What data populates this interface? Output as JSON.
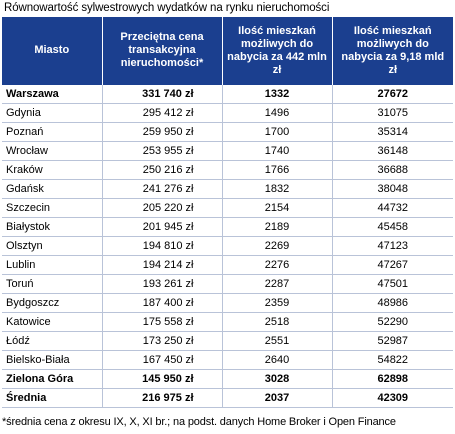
{
  "title": "Równowartość sylwestrowych wydatków na rynku nieruchomości",
  "headers": {
    "city": "Miasto",
    "price": "Przeciętna cena transakcyjna nieruchomości*",
    "count_442": "Ilość mieszkań możliwych do nabycia za 442 mln zł",
    "count_918": "Ilość mieszkań możliwych do nabycia za 9,18 mld zł"
  },
  "rows": [
    {
      "city": "Warszawa",
      "price": "331 740 zł",
      "count_442": "1332",
      "count_918": "27672",
      "bold": true
    },
    {
      "city": "Gdynia",
      "price": "295 412 zł",
      "count_442": "1496",
      "count_918": "31075",
      "bold": false
    },
    {
      "city": "Poznań",
      "price": "259 950 zł",
      "count_442": "1700",
      "count_918": "35314",
      "bold": false
    },
    {
      "city": "Wrocław",
      "price": "253 955 zł",
      "count_442": "1740",
      "count_918": "36148",
      "bold": false
    },
    {
      "city": "Kraków",
      "price": "250 216 zł",
      "count_442": "1766",
      "count_918": "36688",
      "bold": false
    },
    {
      "city": "Gdańsk",
      "price": "241 276 zł",
      "count_442": "1832",
      "count_918": "38048",
      "bold": false
    },
    {
      "city": "Szczecin",
      "price": "205 220 zł",
      "count_442": "2154",
      "count_918": "44732",
      "bold": false
    },
    {
      "city": "Białystok",
      "price": "201 945 zł",
      "count_442": "2189",
      "count_918": "45458",
      "bold": false
    },
    {
      "city": "Olsztyn",
      "price": "194 810 zł",
      "count_442": "2269",
      "count_918": "47123",
      "bold": false
    },
    {
      "city": "Lublin",
      "price": "194 214 zł",
      "count_442": "2276",
      "count_918": "47267",
      "bold": false
    },
    {
      "city": "Toruń",
      "price": "193 261 zł",
      "count_442": "2287",
      "count_918": "47501",
      "bold": false
    },
    {
      "city": "Bydgoszcz",
      "price": "187 400 zł",
      "count_442": "2359",
      "count_918": "48986",
      "bold": false
    },
    {
      "city": "Katowice",
      "price": "175 558 zł",
      "count_442": "2518",
      "count_918": "52290",
      "bold": false
    },
    {
      "city": "Łódź",
      "price": "173 250 zł",
      "count_442": "2551",
      "count_918": "52987",
      "bold": false
    },
    {
      "city": "Bielsko-Biała",
      "price": "167 450 zł",
      "count_442": "2640",
      "count_918": "54822",
      "bold": false
    },
    {
      "city": "Zielona Góra",
      "price": "145 950 zł",
      "count_442": "3028",
      "count_918": "62898",
      "bold": true
    },
    {
      "city": "Średnia",
      "price": "216 975 zł",
      "count_442": "2037",
      "count_918": "42309",
      "bold": true
    }
  ],
  "footnote": "*średnia cena z okresu IX, X, XI br.; na podst. danych Home Broker i Open Finance",
  "colors": {
    "header_bg": "#1b3f8f",
    "header_text": "#ffffff",
    "grid": "#b9c3d8"
  }
}
